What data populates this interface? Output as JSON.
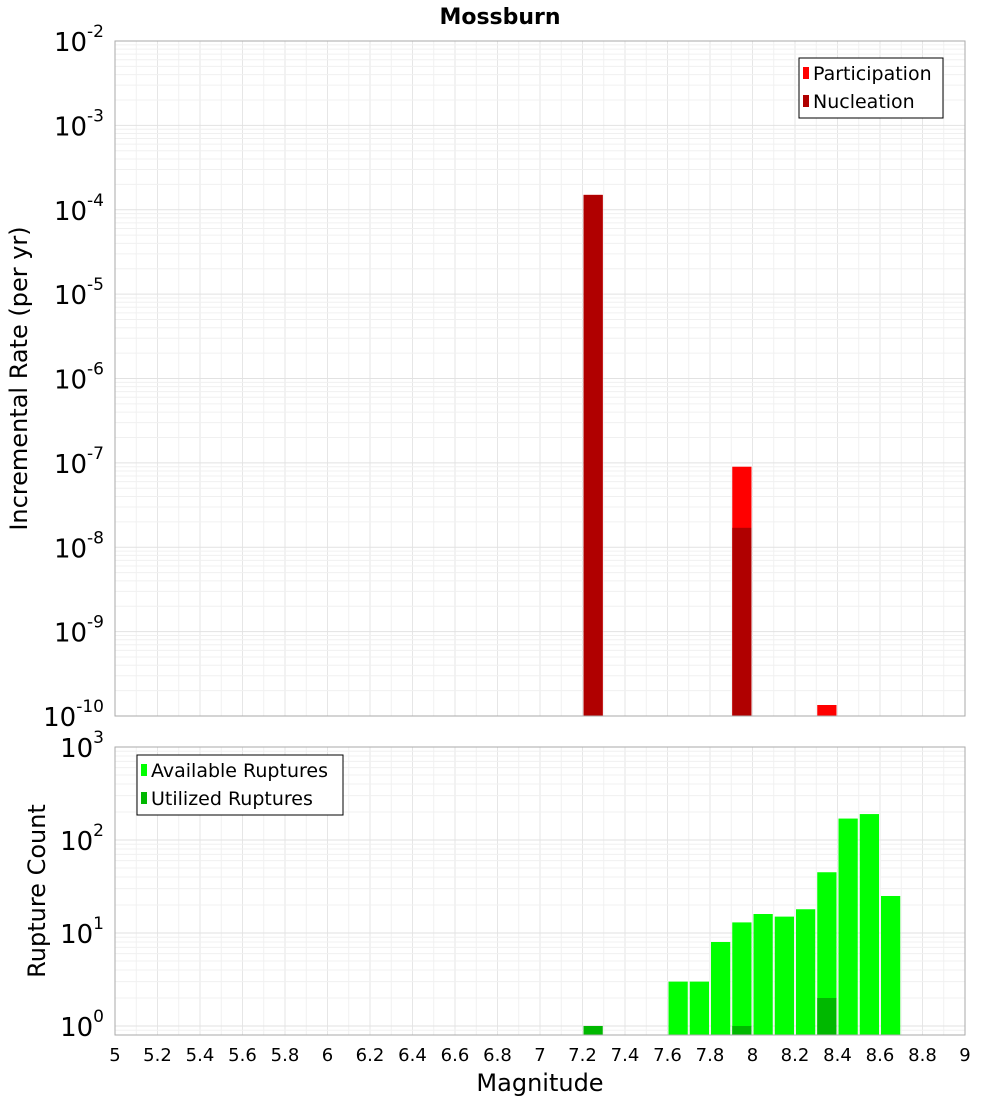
{
  "chart_data": [
    {
      "type": "bar",
      "title": "Mossburn",
      "ylabel": "Incremental Rate (per yr)",
      "xlabel": "",
      "xlim": [
        5,
        9
      ],
      "ylim": [
        1e-10,
        0.01
      ],
      "yscale": "log",
      "grid": true,
      "legend_position": "top-right",
      "y_ticks": [
        {
          "base": "10",
          "exp": "-10",
          "value": 1e-10
        },
        {
          "base": "10",
          "exp": "-9",
          "value": 1e-09
        },
        {
          "base": "10",
          "exp": "-8",
          "value": 1e-08
        },
        {
          "base": "10",
          "exp": "-7",
          "value": 1e-07
        },
        {
          "base": "10",
          "exp": "-6",
          "value": 1e-06
        },
        {
          "base": "10",
          "exp": "-5",
          "value": 1e-05
        },
        {
          "base": "10",
          "exp": "-4",
          "value": 0.0001
        },
        {
          "base": "10",
          "exp": "-3",
          "value": 0.001
        },
        {
          "base": "10",
          "exp": "-2",
          "value": 0.01
        }
      ],
      "series": [
        {
          "name": "Participation",
          "color": "#ff0000",
          "x": [
            7.25,
            7.95,
            8.35
          ],
          "values": [
            0.00015,
            9e-08,
            1.35e-10
          ]
        },
        {
          "name": "Nucleation",
          "color": "#b00000",
          "x": [
            7.25,
            7.95
          ],
          "values": [
            0.00015,
            1.7e-08
          ]
        }
      ]
    },
    {
      "type": "bar",
      "title": "",
      "ylabel": "Rupture Count",
      "xlabel": "Magnitude",
      "xlim": [
        5,
        9
      ],
      "ylim": [
        0.8,
        1000
      ],
      "yscale": "log",
      "grid": true,
      "legend_position": "top-left",
      "x_ticks": [
        "5",
        "5.2",
        "5.4",
        "5.6",
        "5.8",
        "6",
        "6.2",
        "6.4",
        "6.6",
        "6.8",
        "7",
        "7.2",
        "7.4",
        "7.6",
        "7.8",
        "8",
        "8.2",
        "8.4",
        "8.6",
        "8.8",
        "9"
      ],
      "y_ticks": [
        {
          "base": "10",
          "exp": "0",
          "value": 1
        },
        {
          "base": "10",
          "exp": "1",
          "value": 10
        },
        {
          "base": "10",
          "exp": "2",
          "value": 100
        },
        {
          "base": "10",
          "exp": "3",
          "value": 1000
        }
      ],
      "series": [
        {
          "name": "Available Ruptures",
          "color": "#00ff00",
          "x": [
            7.65,
            7.75,
            7.85,
            7.95,
            8.05,
            8.15,
            8.25,
            8.35,
            8.45,
            8.55,
            8.65
          ],
          "values": [
            3,
            3,
            8,
            13,
            16,
            15,
            18,
            45,
            170,
            190,
            25
          ]
        },
        {
          "name": "Utilized Ruptures",
          "color": "#00b800",
          "x": [
            7.25,
            7.95,
            8.35
          ],
          "values": [
            1,
            1,
            2
          ]
        }
      ]
    }
  ]
}
